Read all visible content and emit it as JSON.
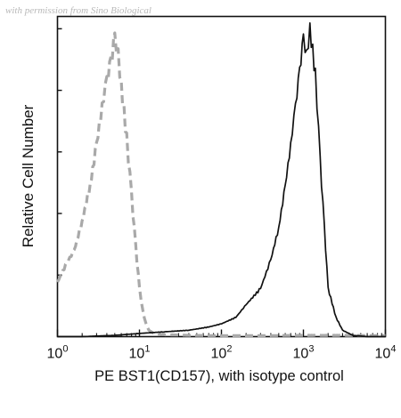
{
  "watermark": "with permission from Sino Biological",
  "chart_data": {
    "type": "line",
    "title": "",
    "xlabel": "PE BST1(CD157), with isotype control",
    "ylabel": "Relative Cell Number",
    "x_scale": "log",
    "xlim": [
      1,
      10000
    ],
    "ylim": [
      0,
      1
    ],
    "x_ticks": [
      {
        "value": 1,
        "base": "10",
        "exp": "0"
      },
      {
        "value": 10,
        "base": "10",
        "exp": "1"
      },
      {
        "value": 100,
        "base": "10",
        "exp": "2"
      },
      {
        "value": 1000,
        "base": "10",
        "exp": "3"
      },
      {
        "value": 10000,
        "base": "10",
        "exp": "4"
      }
    ],
    "grid": false,
    "series": [
      {
        "style": "dashed",
        "color": "#a9a9a9",
        "x": [
          1.0,
          1.3,
          1.6,
          2.0,
          2.5,
          3.0,
          3.5,
          4.0,
          4.5,
          5.0,
          5.5,
          6.0,
          7.0,
          8.0,
          9.0,
          10.0,
          11.0,
          12.0,
          13.0,
          15.0,
          20.0,
          40.0,
          100.0,
          300.0,
          1000.0,
          3000.0,
          10000.0
        ],
        "y": [
          0.17,
          0.23,
          0.27,
          0.36,
          0.47,
          0.6,
          0.72,
          0.8,
          0.86,
          0.93,
          0.88,
          0.78,
          0.62,
          0.44,
          0.28,
          0.15,
          0.08,
          0.04,
          0.02,
          0.01,
          0.006,
          0.004,
          0.003,
          0.003,
          0.004,
          0.004,
          0.003
        ]
      },
      {
        "style": "solid",
        "color": "#111111",
        "x": [
          1.0,
          2.0,
          5.0,
          10.0,
          20.0,
          40.0,
          70.0,
          100.0,
          150.0,
          200.0,
          300.0,
          400.0,
          500.0,
          600.0,
          700.0,
          800.0,
          900.0,
          1000.0,
          1100.0,
          1200.0,
          1400.0,
          1600.0,
          1800.0,
          2000.0,
          2500.0,
          3000.0,
          4000.0,
          6000.0,
          10000.0
        ],
        "y": [
          0.0,
          0.0,
          0.004,
          0.01,
          0.015,
          0.02,
          0.03,
          0.04,
          0.06,
          0.1,
          0.15,
          0.24,
          0.34,
          0.47,
          0.6,
          0.72,
          0.83,
          0.93,
          0.88,
          0.96,
          0.82,
          0.55,
          0.34,
          0.15,
          0.06,
          0.02,
          0.004,
          0.0,
          0.0
        ]
      }
    ]
  }
}
